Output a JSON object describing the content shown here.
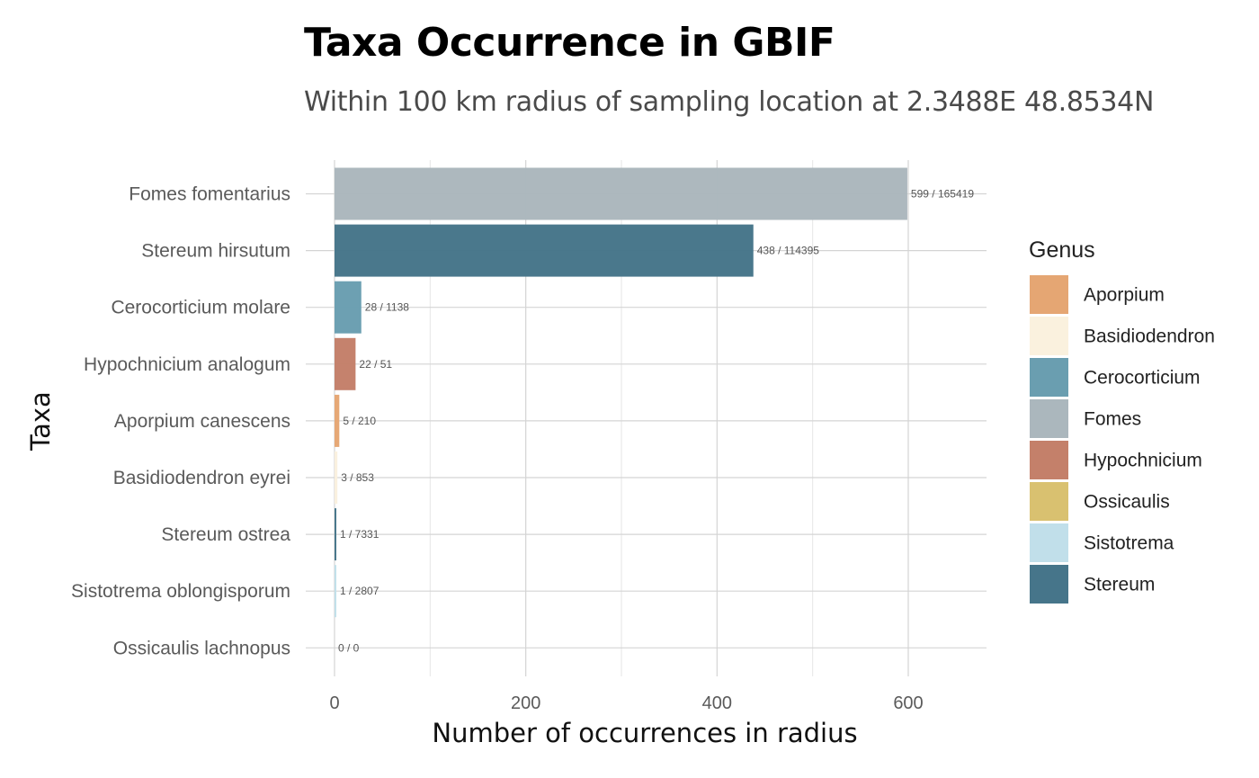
{
  "chart_data": {
    "type": "bar",
    "orientation": "horizontal",
    "title": "Taxa Occurrence in GBIF",
    "subtitle": "Within 100 km radius of sampling location at 2.3488E 48.8534N",
    "xlabel": "Number of occurrences in radius",
    "ylabel": "Taxa",
    "xlim": [
      0,
      680
    ],
    "xticks": [
      0,
      200,
      400,
      600
    ],
    "grid": true,
    "legend_title": "Genus",
    "legend_position": "right",
    "genera": [
      {
        "name": "Aporpium",
        "color": "#E5A673"
      },
      {
        "name": "Basidiodendron",
        "color": "#FAF1DE"
      },
      {
        "name": "Cerocorticium",
        "color": "#6A9EB0"
      },
      {
        "name": "Fomes",
        "color": "#ABB7BD"
      },
      {
        "name": "Hypochnicium",
        "color": "#C4806A"
      },
      {
        "name": "Ossicaulis",
        "color": "#D9C170"
      },
      {
        "name": "Sistotrema",
        "color": "#C1DFEA"
      },
      {
        "name": "Stereum",
        "color": "#46758A"
      }
    ],
    "taxa": [
      {
        "name": "Fomes fomentarius",
        "genus": "Fomes",
        "value": 599,
        "label": "599 / 165419"
      },
      {
        "name": "Stereum hirsutum",
        "genus": "Stereum",
        "value": 438,
        "label": "438 / 114395"
      },
      {
        "name": "Cerocorticium molare",
        "genus": "Cerocorticium",
        "value": 28,
        "label": "28 / 1138"
      },
      {
        "name": "Hypochnicium analogum",
        "genus": "Hypochnicium",
        "value": 22,
        "label": "22 / 51"
      },
      {
        "name": "Aporpium canescens",
        "genus": "Aporpium",
        "value": 5,
        "label": "5 / 210"
      },
      {
        "name": "Basidiodendron eyrei",
        "genus": "Basidiodendron",
        "value": 3,
        "label": "3 / 853"
      },
      {
        "name": "Stereum ostrea",
        "genus": "Stereum",
        "value": 1,
        "label": "1 / 7331"
      },
      {
        "name": "Sistotrema oblongisporum",
        "genus": "Sistotrema",
        "value": 1,
        "label": "1 / 2807"
      },
      {
        "name": "Ossicaulis lachnopus",
        "genus": "Ossicaulis",
        "value": 0,
        "label": "0 / 0"
      }
    ]
  }
}
